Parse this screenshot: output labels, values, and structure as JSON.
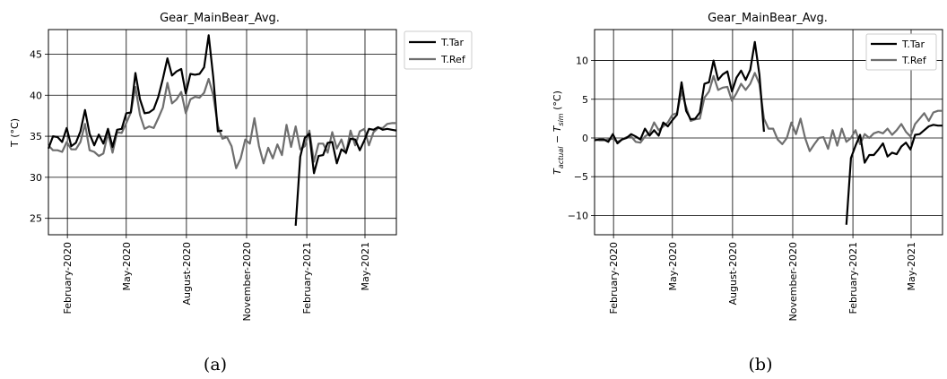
{
  "charts": [
    {
      "id": "a",
      "title": "Gear_MainBear_Avg.",
      "ylabel": "T (°C)",
      "caption": "(a)",
      "yticks": [
        25,
        30,
        35,
        40,
        45
      ],
      "xticks": [
        "February-2020",
        "May-2020",
        "August-2020",
        "November-2020",
        "February-2021",
        "May-2021"
      ],
      "legend": [
        "T.Tar",
        "T.Ref"
      ]
    },
    {
      "id": "b",
      "title": "Gear_MainBear_Avg.",
      "ylabel_parts": [
        "T",
        "actual",
        " − T",
        "sim",
        " (°C)"
      ],
      "caption": "(b)",
      "yticks": [
        -10,
        -5,
        0,
        5,
        10
      ],
      "xticks": [
        "February-2020",
        "May-2020",
        "August-2020",
        "November-2020",
        "February-2021",
        "May-2021"
      ],
      "legend": [
        "T.Tar",
        "T.Ref"
      ]
    }
  ],
  "chart_data": [
    {
      "type": "line",
      "title": "Gear_MainBear_Avg.",
      "xlabel": "",
      "ylabel": "T (°C)",
      "x_range": [
        "2020-01-03",
        "2021-06-18"
      ],
      "ylim": [
        23,
        48
      ],
      "grid": true,
      "legend_position": "outside-top-right",
      "series": [
        {
          "name": "T.Tar",
          "color": "#000000",
          "segments": [
            {
              "x": [
                "2020-01-03",
                "2020-01-10",
                "2020-01-17",
                "2020-01-24",
                "2020-01-31",
                "2020-02-07",
                "2020-02-14",
                "2020-02-21",
                "2020-02-28",
                "2020-03-06",
                "2020-03-13",
                "2020-03-20",
                "2020-03-27",
                "2020-04-03",
                "2020-04-10",
                "2020-04-17",
                "2020-04-24",
                "2020-05-01",
                "2020-05-08",
                "2020-05-15",
                "2020-05-22",
                "2020-05-29",
                "2020-06-05",
                "2020-06-12",
                "2020-06-19",
                "2020-06-26",
                "2020-07-03",
                "2020-07-10",
                "2020-07-17",
                "2020-07-24",
                "2020-07-31",
                "2020-08-07",
                "2020-08-14",
                "2020-08-21",
                "2020-08-28",
                "2020-09-04",
                "2020-09-11",
                "2020-09-18",
                "2020-09-25",
                "2020-10-02"
              ],
              "y": [
                33.5,
                35.0,
                34.9,
                34.3,
                36.0,
                33.8,
                34.2,
                35.6,
                38.2,
                35.3,
                33.9,
                35.2,
                34.1,
                35.9,
                33.7,
                35.8,
                35.9,
                37.8,
                37.9,
                42.7,
                39.5,
                37.8,
                37.9,
                38.3,
                39.8,
                42.0,
                44.5,
                42.4,
                42.9,
                43.2,
                40.2,
                42.6,
                42.5,
                42.6,
                43.4,
                47.3,
                42.2,
                35.6,
                35.7,
                null
              ]
            },
            {
              "x": [
                "2021-01-15",
                "2021-01-22",
                "2021-01-29",
                "2021-02-05",
                "2021-02-12",
                "2021-02-19",
                "2021-02-26",
                "2021-03-05",
                "2021-03-12",
                "2021-03-19",
                "2021-03-26",
                "2021-04-02",
                "2021-04-09",
                "2021-04-16",
                "2021-04-23",
                "2021-04-30",
                "2021-05-07",
                "2021-05-14",
                "2021-05-21",
                "2021-05-28",
                "2021-06-04",
                "2021-06-11",
                "2021-06-18"
              ],
              "y": [
                24.1,
                32.5,
                34.8,
                35.3,
                30.5,
                32.6,
                32.7,
                34.2,
                34.3,
                31.7,
                33.4,
                33.0,
                34.7,
                34.6,
                33.3,
                34.5,
                35.9,
                35.8,
                36.1,
                35.8,
                35.9,
                35.8,
                35.7
              ]
            }
          ]
        },
        {
          "name": "T.Ref",
          "color": "#6e6e6e",
          "x": [
            "2020-01-03",
            "2020-01-10",
            "2020-01-17",
            "2020-01-24",
            "2020-01-31",
            "2020-02-07",
            "2020-02-14",
            "2020-02-21",
            "2020-02-28",
            "2020-03-06",
            "2020-03-13",
            "2020-03-20",
            "2020-03-27",
            "2020-04-03",
            "2020-04-10",
            "2020-04-17",
            "2020-04-24",
            "2020-05-01",
            "2020-05-08",
            "2020-05-15",
            "2020-05-22",
            "2020-05-29",
            "2020-06-05",
            "2020-06-12",
            "2020-06-19",
            "2020-06-26",
            "2020-07-03",
            "2020-07-10",
            "2020-07-17",
            "2020-07-24",
            "2020-07-31",
            "2020-08-07",
            "2020-08-14",
            "2020-08-21",
            "2020-08-28",
            "2020-09-04",
            "2020-09-11",
            "2020-09-18",
            "2020-09-25",
            "2020-10-02",
            "2020-10-09",
            "2020-10-16",
            "2020-10-23",
            "2020-10-30",
            "2020-11-06",
            "2020-11-13",
            "2020-11-20",
            "2020-11-27",
            "2020-12-04",
            "2020-12-11",
            "2020-12-18",
            "2020-12-25",
            "2021-01-01",
            "2021-01-08",
            "2021-01-15",
            "2021-01-22",
            "2021-01-29",
            "2021-02-05",
            "2021-02-12",
            "2021-02-19",
            "2021-02-26",
            "2021-03-05",
            "2021-03-12",
            "2021-03-19",
            "2021-03-26",
            "2021-04-02",
            "2021-04-09",
            "2021-04-16",
            "2021-04-23",
            "2021-04-30",
            "2021-05-07",
            "2021-05-14",
            "2021-05-21",
            "2021-05-28",
            "2021-06-04",
            "2021-06-11",
            "2021-06-18"
          ],
          "y": [
            33.9,
            33.3,
            33.3,
            33.1,
            34.3,
            33.4,
            33.4,
            34.3,
            36.5,
            33.3,
            33.1,
            32.6,
            32.9,
            35.4,
            33.0,
            35.5,
            35.4,
            36.6,
            37.9,
            41.0,
            37.6,
            35.9,
            36.2,
            36.0,
            37.2,
            38.5,
            41.5,
            39.0,
            39.5,
            40.4,
            37.8,
            39.5,
            39.8,
            39.7,
            40.3,
            42.0,
            40.0,
            36.3,
            34.7,
            34.9,
            33.8,
            31.1,
            32.3,
            34.6,
            34.1,
            37.2,
            33.8,
            31.7,
            33.6,
            32.3,
            34.0,
            32.7,
            36.4,
            33.7,
            36.2,
            33.4,
            33.8,
            35.7,
            31.9,
            34.1,
            34.1,
            33.0,
            35.5,
            33.5,
            34.6,
            32.9,
            35.7,
            33.9,
            35.6,
            35.9,
            33.9,
            35.5,
            36.0,
            36.0,
            36.5,
            36.6,
            36.6
          ]
        }
      ]
    },
    {
      "type": "line",
      "title": "Gear_MainBear_Avg.",
      "xlabel": "",
      "ylabel": "T_actual − T_sim (°C)",
      "x_range": [
        "2020-01-03",
        "2021-06-18"
      ],
      "ylim": [
        -12.5,
        14
      ],
      "grid": true,
      "legend_position": "top-right",
      "series": [
        {
          "name": "T.Tar",
          "color": "#000000",
          "segments": [
            {
              "x": [
                "2020-01-03",
                "2020-01-10",
                "2020-01-17",
                "2020-01-24",
                "2020-01-31",
                "2020-02-07",
                "2020-02-14",
                "2020-02-21",
                "2020-02-28",
                "2020-03-06",
                "2020-03-13",
                "2020-03-20",
                "2020-03-27",
                "2020-04-03",
                "2020-04-10",
                "2020-04-17",
                "2020-04-24",
                "2020-05-01",
                "2020-05-08",
                "2020-05-15",
                "2020-05-22",
                "2020-05-29",
                "2020-06-05",
                "2020-06-12",
                "2020-06-19",
                "2020-06-26",
                "2020-07-03",
                "2020-07-10",
                "2020-07-17",
                "2020-07-24",
                "2020-07-31",
                "2020-08-07",
                "2020-08-14",
                "2020-08-21",
                "2020-08-28",
                "2020-09-04",
                "2020-09-11",
                "2020-09-18"
              ],
              "y": [
                -0.3,
                -0.2,
                -0.2,
                -0.5,
                0.5,
                -0.7,
                -0.2,
                0.0,
                0.5,
                0.2,
                -0.2,
                1.2,
                0.3,
                1.0,
                0.3,
                2.0,
                1.5,
                2.3,
                3.0,
                7.2,
                3.5,
                2.4,
                2.5,
                3.3,
                7.0,
                7.2,
                10.0,
                7.5,
                8.2,
                8.6,
                6.0,
                7.8,
                8.7,
                7.5,
                8.8,
                12.4,
                8.2,
                0.8
              ]
            },
            {
              "x": [
                "2021-01-22",
                "2021-01-29",
                "2021-02-05",
                "2021-02-12",
                "2021-02-19",
                "2021-02-26",
                "2021-03-05",
                "2021-03-12",
                "2021-03-19",
                "2021-03-26",
                "2021-04-02",
                "2021-04-09",
                "2021-04-16",
                "2021-04-23",
                "2021-04-30",
                "2021-05-07",
                "2021-05-14",
                "2021-05-21",
                "2021-05-28",
                "2021-06-04",
                "2021-06-11",
                "2021-06-18"
              ],
              "y": [
                -11.2,
                -2.6,
                -1.0,
                0.4,
                -3.2,
                -2.2,
                -2.2,
                -1.5,
                -0.7,
                -2.4,
                -1.9,
                -2.1,
                -1.1,
                -0.6,
                -1.5,
                0.4,
                0.5,
                1.0,
                1.5,
                1.7,
                1.6,
                1.6
              ]
            }
          ]
        },
        {
          "name": "T.Ref",
          "color": "#6e6e6e",
          "x": [
            "2020-01-03",
            "2020-01-10",
            "2020-01-17",
            "2020-01-24",
            "2020-01-31",
            "2020-02-07",
            "2020-02-14",
            "2020-02-21",
            "2020-02-28",
            "2020-03-06",
            "2020-03-13",
            "2020-03-20",
            "2020-03-27",
            "2020-04-03",
            "2020-04-10",
            "2020-04-17",
            "2020-04-24",
            "2020-05-01",
            "2020-05-08",
            "2020-05-15",
            "2020-05-22",
            "2020-05-29",
            "2020-06-05",
            "2020-06-12",
            "2020-06-19",
            "2020-06-26",
            "2020-07-03",
            "2020-07-10",
            "2020-07-17",
            "2020-07-24",
            "2020-07-31",
            "2020-08-07",
            "2020-08-14",
            "2020-08-21",
            "2020-08-28",
            "2020-09-04",
            "2020-09-11",
            "2020-09-18",
            "2020-09-25",
            "2020-10-02",
            "2020-10-09",
            "2020-10-16",
            "2020-10-23",
            "2020-10-30",
            "2020-11-06",
            "2020-11-13",
            "2020-11-20",
            "2020-11-27",
            "2020-12-04",
            "2020-12-11",
            "2020-12-18",
            "2020-12-25",
            "2021-01-01",
            "2021-01-08",
            "2021-01-15",
            "2021-01-22",
            "2021-01-29",
            "2021-02-05",
            "2021-02-12",
            "2021-02-19",
            "2021-02-26",
            "2021-03-05",
            "2021-03-12",
            "2021-03-19",
            "2021-03-26",
            "2021-04-02",
            "2021-04-09",
            "2021-04-16",
            "2021-04-23",
            "2021-04-30",
            "2021-05-07",
            "2021-05-14",
            "2021-05-21",
            "2021-05-28",
            "2021-06-04",
            "2021-06-11",
            "2021-06-18"
          ],
          "y": [
            -0.2,
            -0.3,
            -0.3,
            -0.2,
            -0.1,
            -0.5,
            -0.2,
            0.1,
            0.2,
            -0.5,
            -0.6,
            0.2,
            0.6,
            2.0,
            1.0,
            1.5,
            2.0,
            3.0,
            3.2,
            6.0,
            4.0,
            2.2,
            2.4,
            2.5,
            5.2,
            6.0,
            8.0,
            6.2,
            6.5,
            6.6,
            4.8,
            5.8,
            7.0,
            6.2,
            7.0,
            8.4,
            7.0,
            2.5,
            1.2,
            1.2,
            -0.2,
            -0.8,
            0.0,
            2.0,
            0.5,
            2.5,
            0.0,
            -1.7,
            -0.8,
            0.0,
            0.1,
            -1.4,
            1.0,
            -1.0,
            1.2,
            -0.5,
            0.0,
            1.0,
            -0.8,
            0.5,
            0.0,
            0.6,
            0.8,
            0.6,
            1.2,
            0.4,
            1.0,
            1.8,
            0.8,
            0.2,
            1.8,
            2.5,
            3.2,
            2.2,
            3.3,
            3.5,
            3.5
          ]
        }
      ]
    }
  ]
}
